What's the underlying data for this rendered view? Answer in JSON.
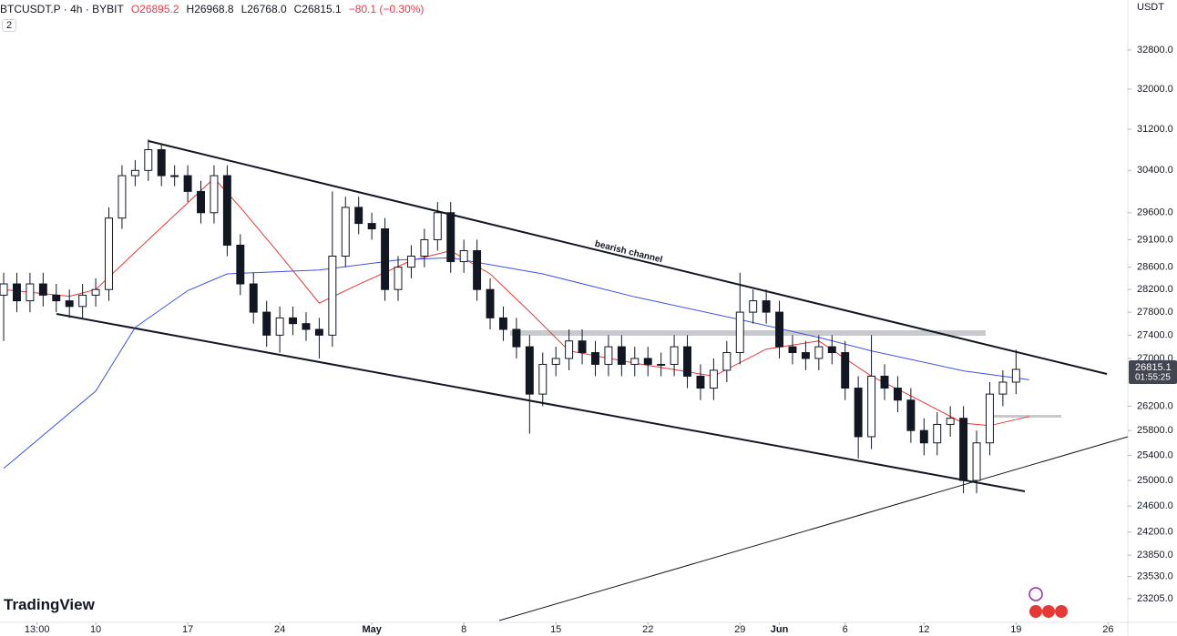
{
  "header": {
    "symbol": "BTCUSDT.P · 4h · BYBIT",
    "ohlc": [
      "O26895.2",
      "H26968.8",
      "L26768.0",
      "C26815.1",
      "−80.1 (−0.30%)"
    ],
    "indicator_count": "2",
    "currency": "USDT",
    "brand": "TradingView"
  },
  "chart_data": {
    "type": "candlestick",
    "log_scale": true,
    "annotation": "bearish channel",
    "up_color": "#ffffff",
    "down_color": "#131722",
    "x": [
      3,
      4,
      5,
      6,
      7,
      8,
      9,
      10,
      11,
      12,
      13,
      14,
      15,
      16,
      17,
      18,
      19,
      20,
      21,
      22,
      23,
      24,
      25,
      26,
      27,
      28,
      29,
      30,
      31,
      32,
      33,
      34,
      35,
      36,
      37,
      38,
      39,
      40,
      41,
      42,
      43,
      44,
      45,
      46,
      47,
      48,
      49,
      50,
      51,
      52,
      53,
      54,
      55,
      56,
      57,
      58,
      59,
      60,
      61,
      62,
      63,
      64,
      65,
      66,
      67,
      68,
      69,
      70,
      71,
      72,
      73,
      74,
      75,
      76,
      77,
      78,
      79,
      80
    ],
    "open": [
      28100,
      28300,
      28000,
      28300,
      28100,
      28000,
      27900,
      28100,
      28200,
      29500,
      30300,
      30400,
      30800,
      30300,
      30300,
      30000,
      29600,
      30300,
      29000,
      28300,
      27800,
      27400,
      27700,
      27600,
      27500,
      27400,
      28800,
      29700,
      29400,
      29300,
      28200,
      28600,
      28800,
      29100,
      29600,
      28700,
      28900,
      28200,
      27700,
      27500,
      27200,
      26400,
      26900,
      27000,
      27300,
      27100,
      26900,
      27200,
      26900,
      27000,
      26900,
      26900,
      27200,
      26700,
      26500,
      26800,
      27100,
      27800,
      28000,
      27800,
      27200,
      27100,
      27000,
      27200,
      27100,
      26500,
      25700,
      26700,
      26500,
      26300,
      25800,
      25600,
      25900,
      26000,
      25000,
      25600,
      26400,
      26600
    ],
    "high": [
      28500,
      28500,
      28500,
      28500,
      28300,
      28200,
      28300,
      28400,
      29700,
      30500,
      30600,
      31000,
      30900,
      30500,
      30500,
      30200,
      30500,
      30500,
      29200,
      28500,
      28000,
      27900,
      27900,
      27800,
      27700,
      30000,
      29900,
      29900,
      29600,
      29500,
      28800,
      29000,
      29300,
      29800,
      29800,
      29100,
      29100,
      28400,
      27900,
      27700,
      27400,
      27100,
      27200,
      27500,
      27500,
      27300,
      27400,
      27400,
      27200,
      27200,
      27100,
      27400,
      27400,
      26900,
      27000,
      27300,
      28500,
      28200,
      28200,
      28000,
      27400,
      27300,
      27400,
      27400,
      27300,
      26700,
      27400,
      26900,
      26700,
      26500,
      26000,
      26100,
      26200,
      26200,
      25800,
      26600,
      26800,
      27150
    ],
    "low": [
      27300,
      27800,
      27800,
      27900,
      27800,
      27700,
      27700,
      27900,
      28000,
      29300,
      30100,
      30200,
      30100,
      30100,
      29800,
      29400,
      29400,
      28800,
      28100,
      27600,
      27200,
      27100,
      27400,
      27300,
      27000,
      27200,
      28600,
      29200,
      29100,
      28000,
      28000,
      28400,
      28600,
      28900,
      28500,
      28500,
      28000,
      27500,
      27300,
      27000,
      25750,
      26200,
      26700,
      26800,
      26900,
      26700,
      26700,
      26700,
      26700,
      26700,
      26700,
      26700,
      26500,
      26300,
      26300,
      26600,
      26900,
      27600,
      27600,
      27000,
      26900,
      26800,
      26800,
      26900,
      26300,
      25350,
      25500,
      26300,
      26100,
      25600,
      25400,
      25400,
      25700,
      24800,
      24800,
      25400,
      26200,
      26400
    ],
    "close": [
      28300,
      28000,
      28300,
      28100,
      28000,
      27900,
      28100,
      28200,
      29500,
      30300,
      30400,
      30800,
      30300,
      30300,
      30000,
      29600,
      30300,
      29000,
      28300,
      27800,
      27400,
      27700,
      27600,
      27500,
      27400,
      28800,
      29700,
      29400,
      29300,
      28200,
      28600,
      28800,
      29100,
      29600,
      28700,
      28900,
      28200,
      27700,
      27500,
      27200,
      26400,
      26900,
      27000,
      27300,
      27100,
      26900,
      27200,
      26900,
      27000,
      26900,
      26900,
      27200,
      26700,
      26500,
      26800,
      27100,
      27800,
      28000,
      27800,
      27200,
      27100,
      27000,
      27200,
      27100,
      26500,
      25700,
      26700,
      26500,
      26300,
      25800,
      25600,
      25900,
      26000,
      25000,
      25600,
      26400,
      26600,
      26815.1
    ],
    "overlays": [
      {
        "color": "#e53935",
        "x": [
          3,
          8,
          10,
          14,
          19,
          21,
          24,
          27,
          30,
          34,
          37,
          40,
          43,
          46,
          51,
          57,
          61,
          65,
          69,
          72,
          76,
          78,
          81
        ],
        "values": [
          28200,
          28080,
          28200,
          29100,
          30250,
          29700,
          28830,
          27960,
          28290,
          28720,
          28900,
          28480,
          27810,
          27130,
          26920,
          26700,
          27160,
          27300,
          26700,
          26370,
          25920,
          25880,
          26030
        ]
      },
      {
        "color": "#3f51e5",
        "x": [
          3,
          10,
          13,
          17,
          20,
          27,
          33,
          37,
          44,
          51,
          59,
          65,
          69,
          76,
          81
        ],
        "values": [
          25190,
          26450,
          27535,
          28180,
          28480,
          28550,
          28730,
          28770,
          28480,
          28070,
          27670,
          27360,
          27130,
          26790,
          26640
        ]
      }
    ],
    "last_price": 26815.1,
    "countdown": "01:55:25",
    "xlim": [
      2.72,
      88.5
    ],
    "xticks": [
      {
        "value": 5.54,
        "label": "13:00"
      },
      10,
      17,
      24,
      {
        "value": 31,
        "label": "May"
      },
      {
        "value": 38,
        "label": "8"
      },
      {
        "value": 45,
        "label": "15"
      },
      {
        "value": 52,
        "label": "22"
      },
      {
        "value": 59,
        "label": "29"
      },
      {
        "value": 62,
        "label": "Jun"
      },
      {
        "value": 67,
        "label": "6"
      },
      {
        "value": 73,
        "label": "12"
      },
      {
        "value": 80,
        "label": "19"
      },
      {
        "value": 87,
        "label": "26"
      }
    ],
    "ylim": [
      22860,
      33850
    ],
    "yticks": [
      {
        "value": 32800,
        "label": "32800.0"
      },
      {
        "value": 32000,
        "label": "32000.0"
      },
      {
        "value": 31200,
        "label": "31200.0"
      },
      {
        "value": 30400,
        "label": "30400.0"
      },
      {
        "value": 29600,
        "label": "29600.0"
      },
      {
        "value": 29100,
        "label": "29100.0"
      },
      {
        "value": 28600,
        "label": "28600.0"
      },
      {
        "value": 28200,
        "label": "28200.0"
      },
      {
        "value": 27800,
        "label": "27800.0"
      },
      {
        "value": 27400,
        "label": "27400.0"
      },
      {
        "value": 27000,
        "label": "27000.0"
      },
      {
        "value": 26200,
        "label": "26200.0"
      },
      {
        "value": 25800,
        "label": "25800.0"
      },
      {
        "value": 25400,
        "label": "25400.0"
      },
      {
        "value": 25000,
        "label": "25000.0"
      },
      {
        "value": 24600,
        "label": "24600.0"
      },
      {
        "value": 24200,
        "label": "24200.0"
      },
      {
        "value": 23850,
        "label": "23850.0"
      },
      {
        "value": 23530,
        "label": "23530.0"
      },
      {
        "value": 23205,
        "label": "23205.0"
      }
    ]
  }
}
